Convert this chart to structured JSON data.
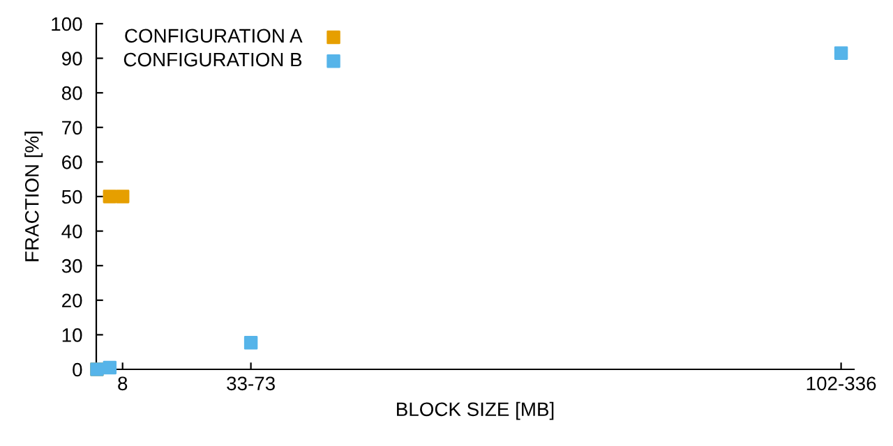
{
  "chart_data": {
    "type": "scatter",
    "xlabel": "BLOCK SIZE [MB]",
    "ylabel": "FRACTION [%]",
    "categories": [
      null,
      null,
      "8",
      null,
      null,
      null,
      null,
      null,
      null,
      null,
      null,
      null,
      "33-73",
      null,
      null,
      null,
      null,
      null,
      null,
      null,
      null,
      null,
      null,
      null,
      null,
      null,
      null,
      null,
      null,
      null,
      null,
      null,
      null,
      null,
      null,
      null,
      null,
      null,
      null,
      null,
      null,
      null,
      null,
      null,
      null,
      null,
      null,
      null,
      null,
      null,
      null,
      null,
      null,
      null,
      null,
      null,
      null,
      null,
      "102-336"
    ],
    "ylim": [
      0,
      100
    ],
    "yticks": [
      0,
      10,
      20,
      30,
      40,
      50,
      60,
      70,
      80,
      90,
      100
    ],
    "series": [
      {
        "name": "CONFIGURATION A",
        "color": "#e69f00",
        "values": [
          0,
          50,
          50,
          null,
          null,
          null,
          null,
          null,
          null,
          null,
          null,
          null,
          null,
          null,
          null,
          null,
          null,
          null,
          null,
          null,
          null,
          null,
          null,
          null,
          null,
          null,
          null,
          null,
          null,
          null,
          null,
          null,
          null,
          null,
          null,
          null,
          null,
          null,
          null,
          null,
          null,
          null,
          null,
          null,
          null,
          null,
          null,
          null,
          null,
          null,
          null,
          null,
          null,
          null,
          null,
          null,
          null,
          null,
          null
        ]
      },
      {
        "name": "CONFIGURATION B",
        "color": "#56b4e9",
        "values": [
          0,
          0.5,
          null,
          null,
          null,
          null,
          null,
          null,
          null,
          null,
          null,
          null,
          7.7,
          null,
          null,
          null,
          null,
          null,
          null,
          null,
          null,
          null,
          null,
          null,
          null,
          null,
          null,
          null,
          null,
          null,
          null,
          null,
          null,
          null,
          null,
          null,
          null,
          null,
          null,
          null,
          null,
          null,
          null,
          null,
          null,
          null,
          null,
          null,
          null,
          null,
          null,
          null,
          null,
          null,
          null,
          null,
          null,
          null,
          91.5
        ]
      }
    ],
    "marker": "square",
    "legend": "top left",
    "grid": false
  }
}
